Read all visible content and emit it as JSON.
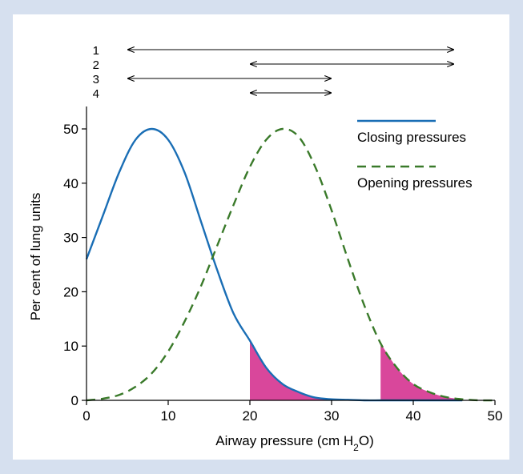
{
  "chart_data": {
    "type": "line",
    "xlabel_main": "Airway pressure (cm H",
    "xlabel_sub": "2",
    "xlabel_end": "O)",
    "ylabel": "Per cent of lung units",
    "xlim": [
      0,
      50
    ],
    "ylim": [
      0,
      50
    ],
    "xticks": [
      0,
      10,
      20,
      30,
      40,
      50
    ],
    "yticks": [
      0,
      10,
      20,
      30,
      40,
      50
    ],
    "legend_position": "top-right",
    "series": [
      {
        "name": "Closing pressures",
        "color": "#1a6eb5",
        "style": "solid",
        "x": [
          0,
          2,
          4,
          6,
          8,
          10,
          12,
          14,
          16,
          18,
          20,
          22,
          24,
          26,
          28,
          30,
          32,
          34,
          36,
          38,
          40,
          42,
          44,
          46
        ],
        "y": [
          26,
          34,
          42,
          48,
          50,
          48,
          42,
          33,
          24,
          16,
          11,
          6,
          3,
          1.5,
          0.5,
          0.2,
          0.1,
          0,
          0,
          0,
          0,
          0,
          0,
          0
        ]
      },
      {
        "name": "Opening pressures",
        "color": "#3a7a2a",
        "style": "dashed",
        "x": [
          0,
          2,
          4,
          6,
          8,
          10,
          12,
          14,
          16,
          18,
          20,
          22,
          24,
          26,
          28,
          30,
          32,
          34,
          36,
          38,
          40,
          42,
          44,
          46,
          48,
          50
        ],
        "y": [
          0,
          0.3,
          1,
          2.5,
          5,
          9,
          14.5,
          21,
          28.5,
          36,
          43,
          48,
          50,
          48.5,
          43,
          35,
          26,
          17.5,
          10.5,
          6,
          3,
          1.5,
          0.6,
          0.2,
          0,
          0
        ]
      }
    ],
    "shaded_regions": [
      {
        "series": "Closing pressures",
        "from": 20,
        "to": 34,
        "color": "#d9479b"
      },
      {
        "series": "Opening pressures",
        "from": 36,
        "to": 46,
        "color": "#d9479b"
      }
    ],
    "ranges": [
      {
        "label": "1",
        "from": 5,
        "to": 45
      },
      {
        "label": "2",
        "from": 20,
        "to": 45
      },
      {
        "label": "3",
        "from": 5,
        "to": 30
      },
      {
        "label": "4",
        "from": 20,
        "to": 30
      }
    ]
  }
}
